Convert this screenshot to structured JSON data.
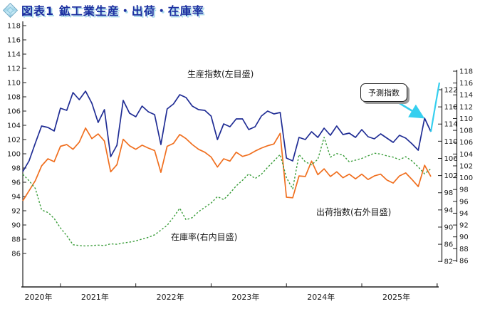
{
  "title": "図表1 鉱工業生産・出荷・在庫率",
  "labels": {
    "production": "生産指数(左目盛)",
    "shipment": "出荷指数(右外目盛)",
    "inventory": "在庫率(右内目盛)",
    "forecast": "予測指数"
  },
  "chart_data": {
    "type": "line",
    "title": "図表1 鉱工業生産・出荷・在庫率",
    "x_unit": "month",
    "x_start": "2020-07",
    "x_end_actual": "2025-12",
    "year_tick_labels": [
      "2020年",
      "2021年",
      "2022年",
      "2023年",
      "2024年",
      "2025年"
    ],
    "left_axis": {
      "ticks": [
        118,
        116,
        114,
        112,
        110,
        108,
        106,
        104,
        102,
        100,
        98,
        96,
        94,
        92,
        90,
        88,
        86
      ],
      "min": 86,
      "max": 118
    },
    "right_outer_axis": {
      "ticks": [
        118,
        116,
        114,
        112,
        110,
        108,
        106,
        104,
        102,
        100,
        98,
        96,
        94,
        92,
        90,
        88,
        86
      ],
      "min": 86,
      "max": 118
    },
    "right_inner_axis": {
      "ticks": [
        122,
        118,
        114,
        110,
        106,
        102,
        98,
        94,
        90,
        86,
        82
      ],
      "min": 82,
      "max": 122
    },
    "series": [
      {
        "name": "生産指数(左目盛)",
        "axis": "left",
        "color": "#1f2c94",
        "style": "solid",
        "values": [
          97.5,
          99.0,
          101.5,
          103.9,
          103.7,
          103.2,
          106.4,
          106.1,
          108.6,
          107.6,
          108.8,
          107.1,
          104.4,
          106.2,
          99.6,
          101.2,
          107.5,
          105.7,
          105.2,
          106.7,
          105.9,
          105.5,
          101.3,
          106.3,
          107.0,
          108.3,
          107.9,
          106.7,
          106.2,
          106.1,
          105.3,
          102.0,
          104.2,
          103.8,
          104.9,
          104.9,
          103.4,
          103.8,
          105.3,
          106.0,
          105.6,
          105.8,
          99.4,
          99.0,
          102.3,
          102.0,
          103.1,
          102.3,
          103.6,
          102.6,
          103.9,
          102.7,
          102.9,
          102.3,
          103.4,
          102.4,
          102.1,
          102.8,
          102.2,
          101.6,
          102.6,
          102.2,
          101.4,
          100.5,
          105.0,
          103.1
        ]
      },
      {
        "name": "出荷指数(右外目盛)",
        "axis": "right_outer",
        "color": "#f06f1f",
        "style": "solid",
        "values": [
          96.1,
          97.8,
          99.5,
          102.0,
          103.2,
          102.7,
          105.3,
          105.6,
          104.8,
          106.0,
          108.4,
          106.6,
          107.4,
          106.2,
          101.0,
          102.2,
          106.5,
          105.4,
          104.8,
          105.5,
          105.0,
          104.6,
          100.9,
          105.3,
          105.8,
          107.3,
          106.6,
          105.6,
          104.8,
          104.3,
          103.5,
          101.8,
          103.2,
          102.8,
          104.3,
          103.6,
          103.9,
          104.5,
          105.0,
          105.4,
          105.7,
          107.5,
          96.7,
          96.6,
          100.3,
          100.2,
          102.8,
          100.5,
          101.5,
          100.2,
          101.0,
          100.0,
          100.6,
          99.8,
          100.6,
          99.7,
          100.3,
          100.6,
          99.6,
          99.1,
          100.3,
          100.8,
          99.7,
          98.5,
          102.1,
          100.2
        ]
      },
      {
        "name": "在庫率(右内目盛)",
        "axis": "right_inner",
        "color": "#3a9d3a",
        "style": "dotted",
        "values": [
          102.3,
          100.8,
          99.0,
          94.0,
          93.4,
          92.0,
          89.8,
          88.0,
          85.9,
          85.7,
          85.6,
          85.7,
          85.8,
          85.7,
          86.1,
          86.0,
          86.3,
          86.5,
          86.8,
          87.2,
          87.6,
          88.2,
          89.3,
          90.4,
          92.3,
          94.4,
          91.7,
          92.2,
          93.6,
          94.6,
          95.6,
          97.1,
          96.4,
          97.9,
          99.6,
          100.9,
          102.4,
          101.3,
          102.3,
          103.9,
          105.4,
          106.9,
          101.5,
          98.9,
          106.9,
          105.2,
          104.5,
          105.8,
          110.9,
          106.3,
          107.1,
          106.8,
          105.2,
          105.6,
          106.0,
          106.6,
          107.2,
          107.0,
          106.6,
          106.3,
          105.7,
          106.4,
          105.4,
          104.0,
          102.4,
          103.6
        ]
      },
      {
        "name": "予測指数",
        "axis": "left",
        "color": "#35cfef",
        "style": "solid",
        "forecast": true,
        "months": [
          "2025-12",
          "2026-01",
          "2026-02"
        ],
        "values": [
          103.1,
          106.6,
          110.0
        ]
      }
    ]
  }
}
